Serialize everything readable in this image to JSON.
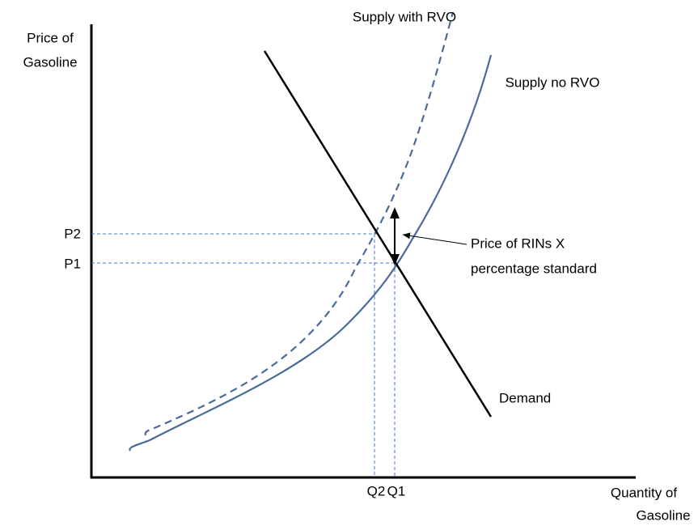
{
  "y_axis_label": [
    "Price of",
    "Gasoline"
  ],
  "x_axis_label": [
    "Quantity of",
    "Gasoline"
  ],
  "curves": {
    "supply_with_rvo": "Supply with RVO",
    "supply_no_rvo": "Supply no RVO",
    "demand": "Demand"
  },
  "price_labels": [
    "P2",
    "P1"
  ],
  "quantity_labels": [
    "Q2",
    "Q1"
  ],
  "annotation": [
    "Price of RINs X",
    "percentage standard"
  ]
}
